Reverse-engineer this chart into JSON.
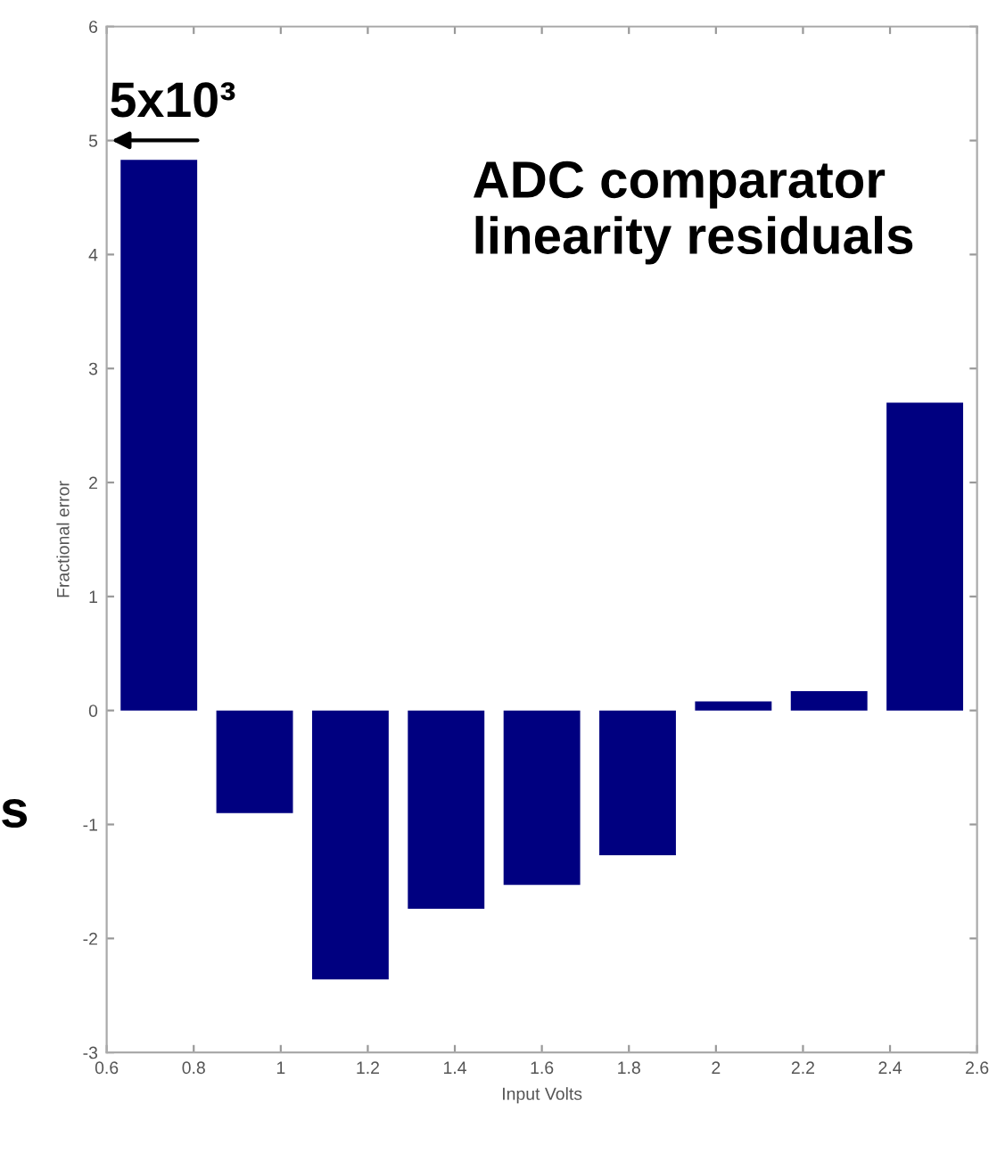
{
  "chart_data": {
    "type": "bar",
    "xlabel": "Input Volts",
    "ylabel": "Fractional error",
    "x": [
      0.72,
      0.94,
      1.16,
      1.38,
      1.6,
      1.82,
      2.04,
      2.26,
      2.48
    ],
    "values": [
      4.83,
      -0.9,
      -2.36,
      -1.74,
      -1.53,
      -1.27,
      0.08,
      0.17,
      2.7
    ],
    "color": "#000080",
    "xlim": [
      0.6,
      2.6
    ],
    "xticks": [
      {
        "value": 0.6,
        "label": "0.6"
      },
      0.8,
      1,
      1.2,
      1.4,
      1.6,
      1.8,
      2,
      2.2,
      2.4,
      2.6
    ],
    "ylim": [
      -3,
      6
    ],
    "yticks": [
      -3,
      -2,
      -1,
      0,
      1,
      2,
      3,
      4,
      5,
      6
    ],
    "grid": false,
    "legend": false,
    "annotations": [
      "5x10³",
      "ADC comparator\nlinearity residuals",
      "s"
    ]
  }
}
